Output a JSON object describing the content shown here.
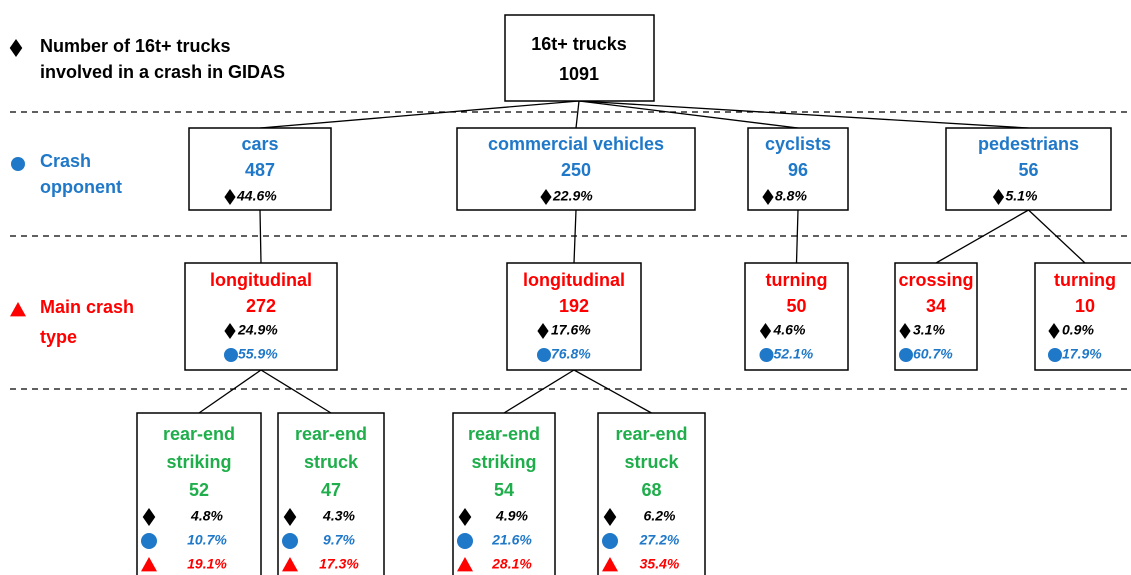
{
  "legend": [
    {
      "lines": [
        "Number of 16t+ trucks",
        "involved in a crash in GIDAS"
      ]
    },
    {
      "lines": [
        "Crash",
        "opponent"
      ]
    },
    {
      "lines": [
        "Main crash",
        "type"
      ]
    }
  ],
  "root": {
    "label": "16t+ trucks",
    "count": 1091
  },
  "opponents": [
    {
      "label": "cars",
      "count": 487,
      "share_total": "44.6%"
    },
    {
      "label": "commercial vehicles",
      "count": 250,
      "share_total": "22.9%"
    },
    {
      "label": "cyclists",
      "count": 96,
      "share_total": "8.8%"
    },
    {
      "label": "pedestrians",
      "count": 56,
      "share_total": "5.1%"
    }
  ],
  "crash_types": [
    {
      "label": "longitudinal",
      "count": 272,
      "share_total": "24.9%",
      "share_opponent": "55.9%"
    },
    {
      "label": "longitudinal",
      "count": 192,
      "share_total": "17.6%",
      "share_opponent": "76.8%"
    },
    {
      "label": "turning",
      "count": 50,
      "share_total": "4.6%",
      "share_opponent": "52.1%"
    },
    {
      "label": "crossing",
      "count": 34,
      "share_total": "3.1%",
      "share_opponent": "60.7%"
    },
    {
      "label": "turning",
      "count": 10,
      "share_total": "0.9%",
      "share_opponent": "17.9%"
    }
  ],
  "subtypes": [
    {
      "lines": [
        "rear-end",
        "striking"
      ],
      "count": 52,
      "share_total": "4.8%",
      "share_opponent": "10.7%",
      "share_type": "19.1%"
    },
    {
      "lines": [
        "rear-end",
        "struck"
      ],
      "count": 47,
      "share_total": "4.3%",
      "share_opponent": "9.7%",
      "share_type": "17.3%"
    },
    {
      "lines": [
        "rear-end",
        "striking"
      ],
      "count": 54,
      "share_total": "4.9%",
      "share_opponent": "21.6%",
      "share_type": "28.1%"
    },
    {
      "lines": [
        "rear-end",
        "struck"
      ],
      "count": 68,
      "share_total": "6.2%",
      "share_opponent": "27.2%",
      "share_type": "35.4%"
    }
  ]
}
